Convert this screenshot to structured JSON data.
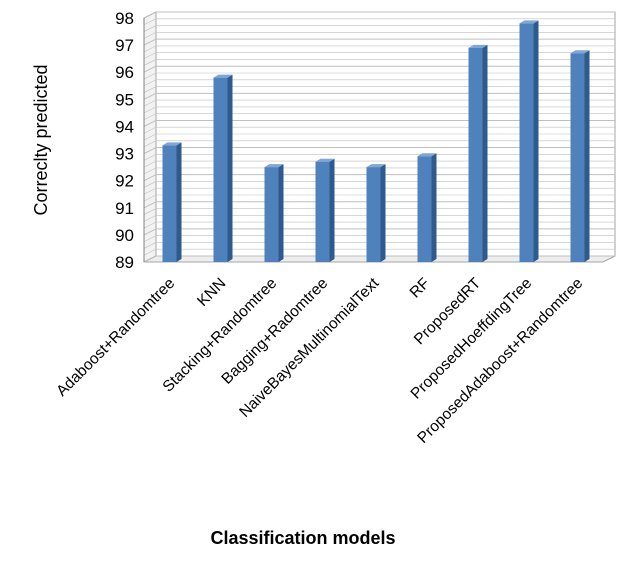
{
  "chart_data": {
    "type": "bar",
    "title": "",
    "xlabel": "Classification models",
    "ylabel": "Correclty predicted",
    "categories": [
      "Adaboost+Randomtree",
      "KNN",
      "Stacking+Randomtree",
      "Bagging+Radomtree",
      "NaiveBayesMultinomialText",
      "RF",
      "ProposedRT",
      "ProposedHoeffdingTree",
      "ProposedAdaboost+Randomtree"
    ],
    "values": [
      93.3,
      95.8,
      92.5,
      92.7,
      92.5,
      92.9,
      96.9,
      97.8,
      96.7
    ],
    "ylim": [
      89,
      98
    ],
    "yticks": [
      89,
      90,
      91,
      92,
      93,
      94,
      95,
      96,
      97,
      98
    ],
    "grid": true,
    "style": "3d-column",
    "colors": {
      "bar_front": "#4F81BD",
      "bar_side": "#2E5A8E",
      "bar_top": "#7FA6D6",
      "gridline": "#BFBFBF",
      "wall": "#FFFFFF"
    }
  }
}
